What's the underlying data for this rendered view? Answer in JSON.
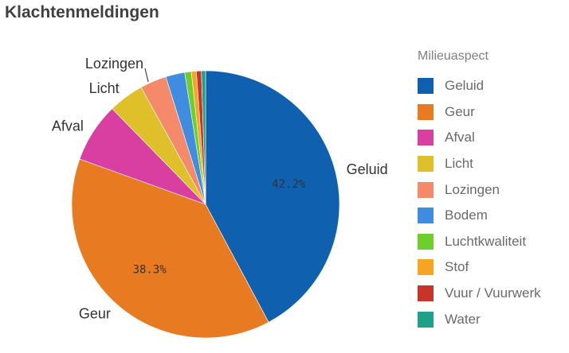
{
  "title": "Klachtenmeldingen",
  "chart_data": {
    "type": "pie",
    "title": "Klachtenmeldingen",
    "legend_title": "Milieuaspect",
    "legend_placement": "right",
    "slices": [
      {
        "label": "Geluid",
        "value": 42.2,
        "color": "#1060b0",
        "data_label": "42.2%",
        "outer_label": "Geluid"
      },
      {
        "label": "Geur",
        "value": 38.3,
        "color": "#e87a22",
        "data_label": "38.3%",
        "outer_label": "Geur"
      },
      {
        "label": "Afval",
        "value": 7.2,
        "color": "#d83fa0",
        "outer_label": "Afval"
      },
      {
        "label": "Licht",
        "value": 4.3,
        "color": "#e0c02a",
        "outer_label": "Licht"
      },
      {
        "label": "Lozingen",
        "value": 3.2,
        "color": "#f58a6a",
        "outer_label": "Lozingen"
      },
      {
        "label": "Bodem",
        "value": 2.3,
        "color": "#3f8ce0"
      },
      {
        "label": "Luchtkwaliteit",
        "value": 0.8,
        "color": "#6ecf2a"
      },
      {
        "label": "Stof",
        "value": 0.6,
        "color": "#f5a521"
      },
      {
        "label": "Vuur / Vuurwerk",
        "value": 0.6,
        "color": "#c8342a"
      },
      {
        "label": "Water",
        "value": 0.5,
        "color": "#1fa088"
      }
    ]
  }
}
